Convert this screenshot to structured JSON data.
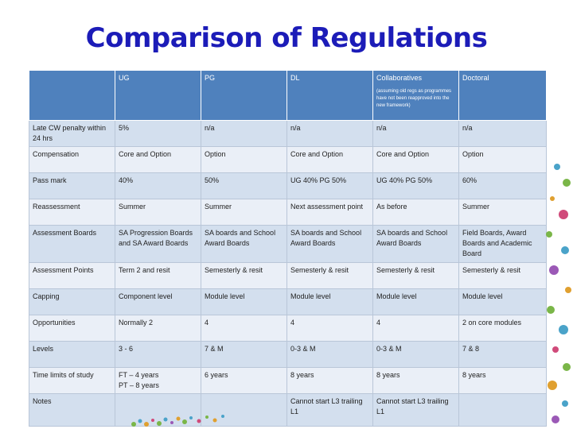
{
  "title": "Comparison of Regulations",
  "header": {
    "c0": "",
    "c1": "UG",
    "c2": "PG",
    "c3": "DL",
    "c4": "Collaboratives",
    "c4_note": "(assuming old regs as programmes have not been reapproved into the new framework)",
    "c5": "Doctoral"
  },
  "rows": [
    {
      "c0": "Late CW penalty within 24 hrs",
      "c1": "5%",
      "c2": "n/a",
      "c3": "n/a",
      "c4": "n/a",
      "c5": "n/a"
    },
    {
      "c0": "Compensation",
      "c1": "Core and Option",
      "c2": "Option",
      "c3": "Core and Option",
      "c4": "Core and Option",
      "c5": "Option"
    },
    {
      "c0": "Pass mark",
      "c1": "40%",
      "c2": "50%",
      "c3": "UG 40% PG 50%",
      "c4": "UG 40% PG 50%",
      "c5": "60%"
    },
    {
      "c0": "Reassessment",
      "c1": "Summer",
      "c2": "Summer",
      "c3": "Next assessment point",
      "c4": "As before",
      "c5": "Summer"
    },
    {
      "c0": "Assessment Boards",
      "c1": "SA Progression Boards and SA Award Boards",
      "c2": "SA boards and School Award Boards",
      "c3": "SA boards and School Award Boards",
      "c4": "SA boards and School Award Boards",
      "c5": "Field Boards, Award Boards and Academic Board"
    },
    {
      "c0": "Assessment Points",
      "c1": "Term 2 and resit",
      "c2": "Semesterly & resit",
      "c3": "Semesterly & resit",
      "c4": "Semesterly & resit",
      "c5": "Semesterly & resit"
    },
    {
      "c0": "Capping",
      "c1": "Component level",
      "c2": "Module level",
      "c3": "Module level",
      "c4": "Module level",
      "c5": "Module level"
    },
    {
      "c0": "Opportunities",
      "c1": "Normally 2",
      "c2": "4",
      "c3": "4",
      "c4": "4",
      "c5": "2 on core modules"
    },
    {
      "c0": "Levels",
      "c1": "3 - 6",
      "c2": "7 & M",
      "c3": "0-3 & M",
      "c4": "0-3 & M",
      "c5": "7 & 8"
    },
    {
      "c0": "Time limits of study",
      "c1": "FT – 4 years",
      "c1b": "PT – 8 years",
      "c2": "6 years",
      "c3": "8 years",
      "c4": "8 years",
      "c5": "8 years"
    },
    {
      "c0": "Notes",
      "c1": "",
      "c2": "",
      "c3": "Cannot start L3 trailing L1",
      "c4": "Cannot start L3 trailing L1",
      "c5": ""
    }
  ]
}
